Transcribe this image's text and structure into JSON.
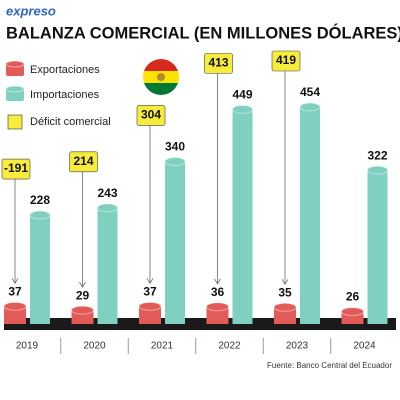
{
  "brand": "expreso",
  "chart_data": {
    "type": "bar",
    "title": "BALANZA COMERCIAL (EN MILLONES DÓLARES)",
    "categories": [
      "2019",
      "2020",
      "2021",
      "2022",
      "2023",
      "2024"
    ],
    "series": [
      {
        "name": "Exportaciones",
        "color": "#e25b58",
        "values": [
          37,
          29,
          37,
          36,
          35,
          26
        ]
      },
      {
        "name": "Importaciones",
        "color": "#7fd0c1",
        "values": [
          228,
          243,
          340,
          449,
          454,
          322
        ]
      },
      {
        "name": "Déficit comercial",
        "color": "#f7ec3c",
        "values": [
          -191,
          214,
          304,
          413,
          419,
          null
        ]
      }
    ],
    "source": "Fuente: Banco Central del Ecuador"
  }
}
